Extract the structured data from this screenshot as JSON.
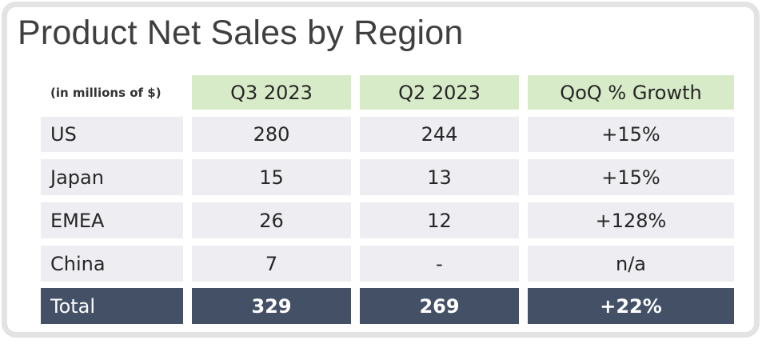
{
  "title": "Product Net Sales by Region",
  "table": {
    "unit_label": "(in millions of $)",
    "columns": [
      "Q3 2023",
      "Q2 2023",
      "QoQ % Growth"
    ],
    "rows": [
      {
        "region": "US",
        "q3": "280",
        "q2": "244",
        "growth": "+15%"
      },
      {
        "region": "Japan",
        "q3": "15",
        "q2": "13",
        "growth": "+15%"
      },
      {
        "region": "EMEA",
        "q3": "26",
        "q2": "12",
        "growth": "+128%"
      },
      {
        "region": "China",
        "q3": "7",
        "q2": "-",
        "growth": "n/a"
      }
    ],
    "total": {
      "label": "Total",
      "q3": "329",
      "q2": "269",
      "growth": "+22%"
    }
  },
  "colors": {
    "header_fill": "#d8ebc8",
    "row_fill": "#eeeef2",
    "total_fill": "#435066"
  }
}
